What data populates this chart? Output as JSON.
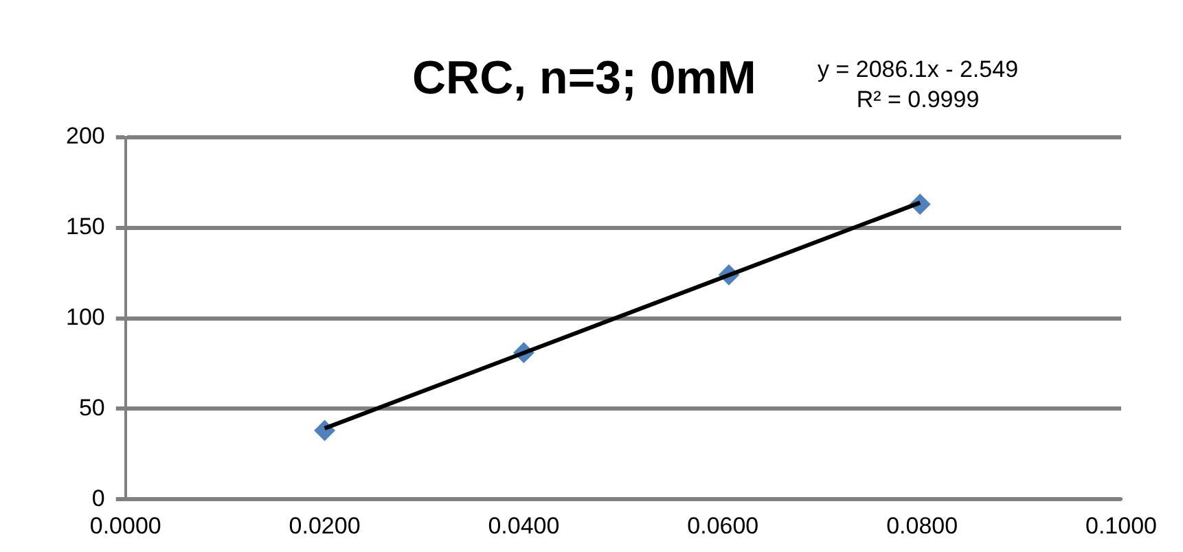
{
  "chart_data": {
    "type": "scatter",
    "title": "CRC, n=3; 0mM",
    "x": [
      0.02,
      0.04,
      0.0606,
      0.0798
    ],
    "series": [
      {
        "color": "#4f81bd",
        "values": [
          38,
          81,
          124,
          163
        ],
        "marker": "diamond"
      },
      {
        "type": "line",
        "color": "#000000",
        "x": [
          0.02,
          0.0798
        ],
        "values": [
          39.2,
          163.9
        ],
        "marker": "none"
      }
    ],
    "annotations": [
      "y = 2086.1x - 2.549",
      "R² = 0.9999"
    ],
    "xlim": [
      0,
      0.1
    ],
    "xticks": [
      {
        "value": 0,
        "label": "0.0000"
      },
      {
        "value": 0.02,
        "label": "0.0200"
      },
      {
        "value": 0.04,
        "label": "0.0400"
      },
      {
        "value": 0.06,
        "label": "0.0600"
      },
      {
        "value": 0.08,
        "label": "0.0800"
      },
      {
        "value": 0.1,
        "label": "0.1000"
      }
    ],
    "ylim": [
      0,
      200
    ],
    "yticks": [
      0,
      50,
      100,
      150,
      200
    ],
    "grid": "y",
    "legend": false
  }
}
